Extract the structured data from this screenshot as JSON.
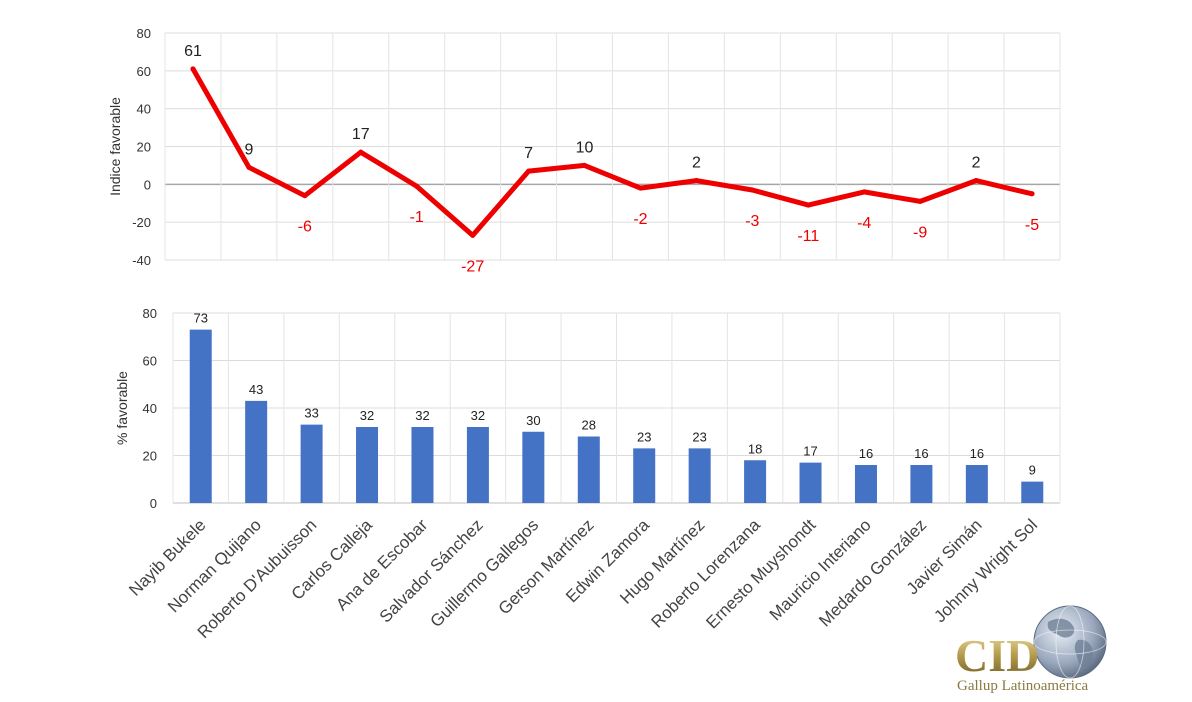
{
  "chart_data": [
    {
      "type": "line",
      "ylabel": "Indice favorable",
      "ylim": [
        -40,
        80
      ],
      "yticks": [
        -40,
        -20,
        0,
        20,
        40,
        60,
        80
      ],
      "grid": true,
      "categories": [
        "Nayib Bukele",
        "Norman Quijano",
        "Roberto D'Aubuisson",
        "Carlos Calleja",
        "Ana de Escobar",
        "Salvador Sánchez",
        "Guillermo Gallegos",
        "Gerson Martínez",
        "Edwin Zamora",
        "Hugo Martínez",
        "Roberto Lorenzana",
        "Ernesto Muyshondt",
        "Mauricio Interiano",
        "Medardo González",
        "Javier Simán",
        "Johnny Wright Sol"
      ],
      "series": [
        {
          "color": "#ee0000",
          "values": [
            61,
            9,
            -6,
            17,
            -1,
            -27,
            7,
            10,
            -2,
            2,
            -3,
            -11,
            -4,
            -9,
            2,
            -5
          ]
        }
      ],
      "data_label_colors": {
        "positive": "#222222",
        "negative": "#ee0000"
      }
    },
    {
      "type": "bar",
      "ylabel": "% favorable",
      "ylim": [
        0,
        80
      ],
      "yticks": [
        0,
        20,
        40,
        60,
        80
      ],
      "grid": true,
      "categories": [
        "Nayib Bukele",
        "Norman Quijano",
        "Roberto D'Aubuisson",
        "Carlos Calleja",
        "Ana de Escobar",
        "Salvador Sánchez",
        "Guillermo Gallegos",
        "Gerson Martínez",
        "Edwin Zamora",
        "Hugo Martínez",
        "Roberto Lorenzana",
        "Ernesto Muyshondt",
        "Mauricio Interiano",
        "Medardo González",
        "Javier Simán",
        "Johnny Wright Sol"
      ],
      "series": [
        {
          "color": "#4472c4",
          "values": [
            73,
            43,
            33,
            32,
            32,
            32,
            30,
            28,
            23,
            23,
            18,
            17,
            16,
            16,
            16,
            9
          ]
        }
      ]
    }
  ],
  "logo": {
    "name": "CID",
    "tagline": "Gallup Latinoamérica",
    "icon": "globe-icon"
  }
}
